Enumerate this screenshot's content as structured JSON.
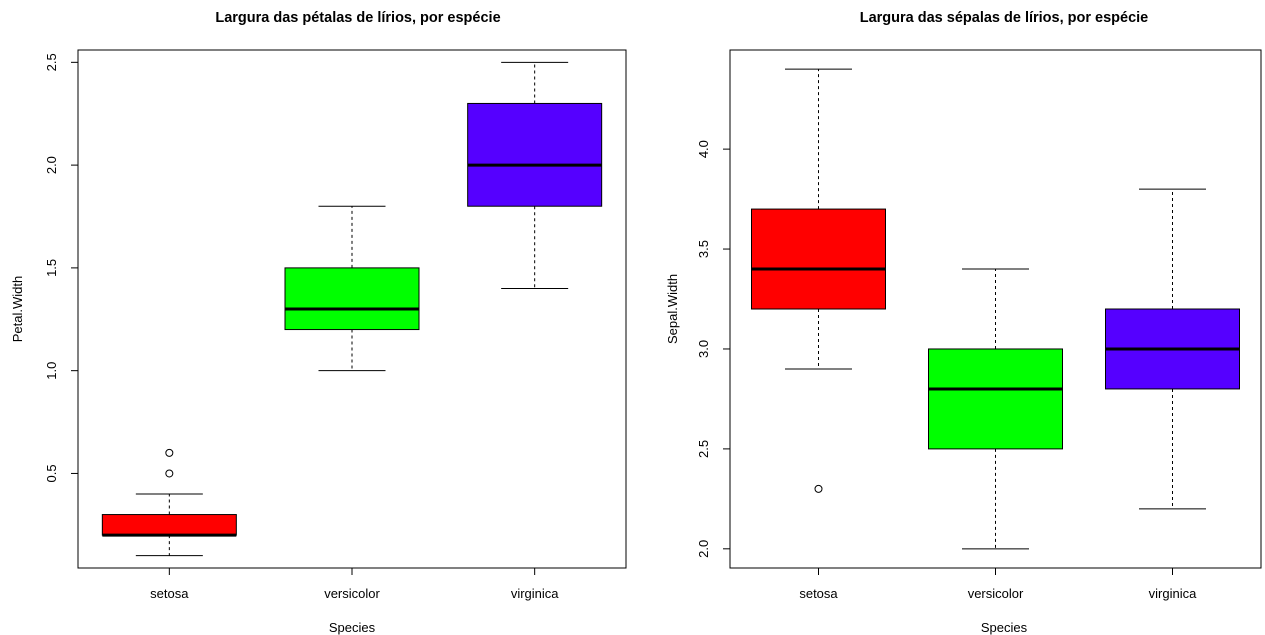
{
  "chart_data": [
    {
      "type": "boxplot",
      "title": "Largura das pétalas de lírios, por espécie",
      "xlabel": "Species",
      "ylabel": "Petal.Width",
      "categories": [
        "setosa",
        "versicolor",
        "virginica"
      ],
      "yticks": [
        "0.5",
        "1.0",
        "1.5",
        "2.0",
        "2.5"
      ],
      "ylim": [
        0.04,
        2.56
      ],
      "grid": false,
      "boxes": [
        {
          "category": "setosa",
          "whisker_low": 0.1,
          "q1": 0.2,
          "median": 0.2,
          "q3": 0.3,
          "whisker_high": 0.4,
          "outliers": [
            0.5,
            0.6
          ],
          "color": "#ff0000"
        },
        {
          "category": "versicolor",
          "whisker_low": 1.0,
          "q1": 1.2,
          "median": 1.3,
          "q3": 1.5,
          "whisker_high": 1.8,
          "outliers": [],
          "color": "#00ff00"
        },
        {
          "category": "virginica",
          "whisker_low": 1.4,
          "q1": 1.8,
          "median": 2.0,
          "q3": 2.3,
          "whisker_high": 2.5,
          "outliers": [],
          "color": "#5500ff"
        }
      ]
    },
    {
      "type": "boxplot",
      "title": "Largura das sépalas de lírios, por espécie",
      "xlabel": "Species",
      "ylabel": "Sepal.Width",
      "categories": [
        "setosa",
        "versicolor",
        "virginica"
      ],
      "yticks": [
        "2.0",
        "2.5",
        "3.0",
        "3.5",
        "4.0"
      ],
      "ylim": [
        1.904,
        4.496
      ],
      "grid": false,
      "boxes": [
        {
          "category": "setosa",
          "whisker_low": 2.9,
          "q1": 3.2,
          "median": 3.4,
          "q3": 3.7,
          "whisker_high": 4.4,
          "outliers": [
            2.3
          ],
          "color": "#ff0000"
        },
        {
          "category": "versicolor",
          "whisker_low": 2.0,
          "q1": 2.5,
          "median": 2.8,
          "q3": 3.0,
          "whisker_high": 3.4,
          "outliers": [],
          "color": "#00ff00"
        },
        {
          "category": "virginica",
          "whisker_low": 2.2,
          "q1": 2.8,
          "median": 3.0,
          "q3": 3.2,
          "whisker_high": 3.8,
          "outliers": [],
          "color": "#5500ff"
        }
      ]
    }
  ]
}
